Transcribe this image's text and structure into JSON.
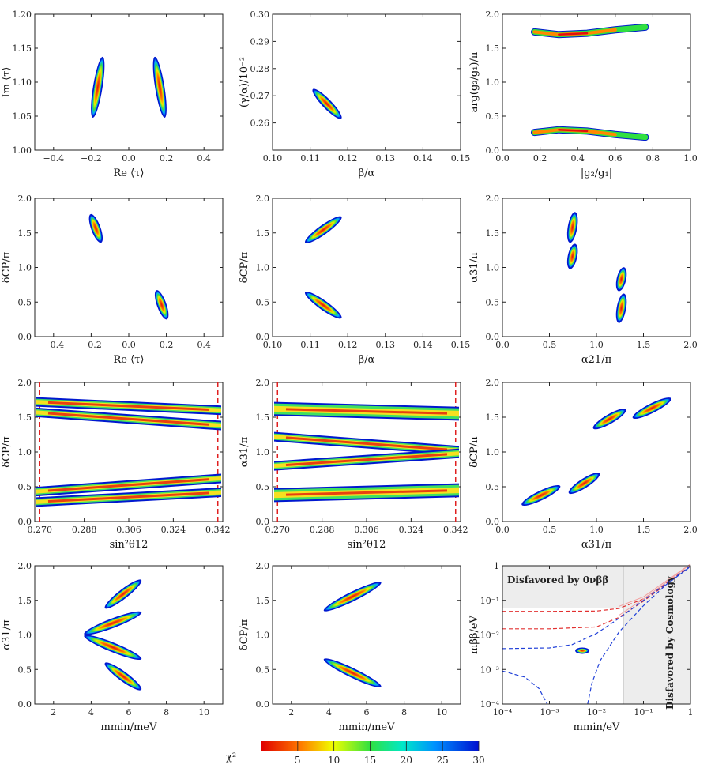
{
  "figure": {
    "colorbar_label": "χ²"
  },
  "colorbar": {
    "ticks": [
      5,
      10,
      15,
      20,
      25,
      30
    ],
    "min": 0,
    "max": 30,
    "tick_labels": [
      "5",
      "10",
      "15",
      "20",
      "25",
      "30"
    ]
  },
  "chart_data": [
    {
      "id": "p1",
      "type": "scatter",
      "xlabel": "Re ⟨τ⟩",
      "ylabel": "Im ⟨τ⟩",
      "xlim": [
        -0.5,
        0.5
      ],
      "ylim": [
        1.0,
        1.2
      ],
      "xticks": [
        -0.4,
        -0.2,
        0.0,
        0.2,
        0.4
      ],
      "xtick_labels": [
        "−0.4",
        "−0.2",
        "0.0",
        "0.2",
        "0.4"
      ],
      "yticks": [
        1.0,
        1.05,
        1.1,
        1.15,
        1.2
      ],
      "ytick_labels": [
        "1.00",
        "1.05",
        "1.10",
        "1.15",
        "1.20"
      ],
      "blobs": [
        {
          "x": [
            -0.19,
            -0.14
          ],
          "y": [
            1.05,
            1.135
          ],
          "w": 0.02
        },
        {
          "x": [
            0.19,
            0.14
          ],
          "y": [
            1.05,
            1.135
          ],
          "w": 0.02
        }
      ]
    },
    {
      "id": "p2",
      "type": "scatter",
      "xlabel": "β/α",
      "ylabel": "(γ/α)/10⁻³",
      "xlim": [
        0.1,
        0.15
      ],
      "ylim": [
        0.25,
        0.3
      ],
      "xticks": [
        0.1,
        0.11,
        0.12,
        0.13,
        0.14,
        0.15
      ],
      "xtick_labels": [
        "0.10",
        "0.11",
        "0.12",
        "0.13",
        "0.14",
        "0.15"
      ],
      "yticks": [
        0.26,
        0.27,
        0.28,
        0.29,
        0.3
      ],
      "ytick_labels": [
        "0.26",
        "0.27",
        "0.28",
        "0.29",
        "0.30"
      ],
      "blobs": [
        {
          "x": [
            0.111,
            0.118
          ],
          "y": [
            0.272,
            0.262
          ],
          "w": 0.008
        }
      ]
    },
    {
      "id": "p3",
      "type": "scatter",
      "xlabel": "|g₂/g₁|",
      "ylabel": "arg(g₂/g₁)/π",
      "xlim": [
        0,
        1
      ],
      "ylim": [
        0,
        2
      ],
      "xticks": [
        0,
        0.2,
        0.4,
        0.6,
        0.8,
        1.0
      ],
      "xtick_labels": [
        "0.0",
        "0.2",
        "0.4",
        "0.6",
        "0.8",
        "1.0"
      ],
      "yticks": [
        0,
        0.5,
        1.0,
        1.5,
        2.0
      ],
      "ytick_labels": [
        "0.0",
        "0.5",
        "1.0",
        "1.5",
        "2.0"
      ],
      "curves": [
        {
          "pts": [
            [
              0.17,
              1.74
            ],
            [
              0.3,
              1.7
            ],
            [
              0.45,
              1.72
            ],
            [
              0.6,
              1.77
            ],
            [
              0.76,
              1.81
            ]
          ],
          "w": 0.06
        },
        {
          "pts": [
            [
              0.17,
              0.26
            ],
            [
              0.3,
              0.3
            ],
            [
              0.45,
              0.28
            ],
            [
              0.6,
              0.23
            ],
            [
              0.76,
              0.19
            ]
          ],
          "w": 0.06
        }
      ]
    },
    {
      "id": "p4",
      "type": "scatter",
      "xlabel": "Re ⟨τ⟩",
      "ylabel": "δCP/π",
      "xlim": [
        -0.5,
        0.5
      ],
      "ylim": [
        0,
        2
      ],
      "xticks": [
        -0.4,
        -0.2,
        0.0,
        0.2,
        0.4
      ],
      "xtick_labels": [
        "−0.4",
        "−0.2",
        "0.0",
        "0.2",
        "0.4"
      ],
      "yticks": [
        0,
        0.5,
        1.0,
        1.5,
        2.0
      ],
      "ytick_labels": [
        "0.0",
        "0.5",
        "1.0",
        "1.5",
        "2.0"
      ],
      "blobs": [
        {
          "x": [
            -0.2,
            -0.15
          ],
          "y": [
            1.75,
            1.38
          ],
          "w": 0.025
        },
        {
          "x": [
            0.15,
            0.2
          ],
          "y": [
            0.65,
            0.27
          ],
          "w": 0.025
        }
      ]
    },
    {
      "id": "p5",
      "type": "scatter",
      "xlabel": "β/α",
      "ylabel": "δCP/π",
      "xlim": [
        0.1,
        0.15
      ],
      "ylim": [
        0,
        2
      ],
      "xticks": [
        0.1,
        0.11,
        0.12,
        0.13,
        0.14,
        0.15
      ],
      "xtick_labels": [
        "0.10",
        "0.11",
        "0.12",
        "0.13",
        "0.14",
        "0.15"
      ],
      "yticks": [
        0,
        0.5,
        1.0,
        1.5,
        2.0
      ],
      "ytick_labels": [
        "0.0",
        "0.5",
        "1.0",
        "1.5",
        "2.0"
      ],
      "blobs": [
        {
          "x": [
            0.109,
            0.118
          ],
          "y": [
            1.37,
            1.72
          ],
          "w": 0.05
        },
        {
          "x": [
            0.109,
            0.118
          ],
          "y": [
            0.63,
            0.28
          ],
          "w": 0.05
        }
      ]
    },
    {
      "id": "p6",
      "type": "scatter",
      "xlabel": "α21/π",
      "ylabel": "α31/π",
      "xlim": [
        0,
        2
      ],
      "ylim": [
        0,
        2
      ],
      "xticks": [
        0,
        0.5,
        1.0,
        1.5,
        2.0
      ],
      "xtick_labels": [
        "0.0",
        "0.5",
        "1.0",
        "1.5",
        "2.0"
      ],
      "yticks": [
        0,
        0.5,
        1.0,
        1.5,
        2.0
      ],
      "ytick_labels": [
        "0.0",
        "0.5",
        "1.0",
        "1.5",
        "2.0"
      ],
      "blobs": [
        {
          "x": [
            0.72,
            0.77
          ],
          "y": [
            1.38,
            1.78
          ],
          "w": 0.06
        },
        {
          "x": [
            0.72,
            0.77
          ],
          "y": [
            1.0,
            1.32
          ],
          "w": 0.06
        },
        {
          "x": [
            1.24,
            1.29
          ],
          "y": [
            0.68,
            0.98
          ],
          "w": 0.06
        },
        {
          "x": [
            1.24,
            1.29
          ],
          "y": [
            0.22,
            0.6
          ],
          "w": 0.06
        }
      ]
    },
    {
      "id": "p7",
      "type": "scatter",
      "xlabel": "sin²θ12",
      "ylabel": "δCP/π",
      "xlim": [
        0.268,
        0.344
      ],
      "ylim": [
        0,
        2
      ],
      "xticks": [
        0.27,
        0.288,
        0.306,
        0.324,
        0.342
      ],
      "xtick_labels": [
        "0.270",
        "0.288",
        "0.306",
        "0.324",
        "0.342"
      ],
      "yticks": [
        0,
        0.5,
        1.0,
        1.5,
        2.0
      ],
      "ytick_labels": [
        "0.0",
        "0.5",
        "1.0",
        "1.5",
        "2.0"
      ],
      "vlines": [
        0.27,
        0.342
      ],
      "bands": [
        {
          "y0": 1.72,
          "y1": 1.6,
          "w": 0.1
        },
        {
          "y0": 1.57,
          "y1": 1.38,
          "w": 0.08
        },
        {
          "y0": 0.43,
          "y1": 0.62,
          "w": 0.08
        },
        {
          "y0": 0.28,
          "y1": 0.42,
          "w": 0.1
        }
      ]
    },
    {
      "id": "p8",
      "type": "scatter",
      "xlabel": "sin²θ12",
      "ylabel": "α31/π",
      "xlim": [
        0.268,
        0.344
      ],
      "ylim": [
        0,
        2
      ],
      "xticks": [
        0.27,
        0.288,
        0.306,
        0.324,
        0.342
      ],
      "xtick_labels": [
        "0.270",
        "0.288",
        "0.306",
        "0.324",
        "0.342"
      ],
      "yticks": [
        0,
        0.5,
        1.0,
        1.5,
        2.0
      ],
      "ytick_labels": [
        "0.0",
        "0.5",
        "1.0",
        "1.5",
        "2.0"
      ],
      "vlines": [
        0.27,
        0.342
      ],
      "bands": [
        {
          "y0": 1.62,
          "y1": 1.55,
          "w": 0.2
        },
        {
          "y0": 1.22,
          "y1": 1.02,
          "w": 0.12
        },
        {
          "y0": 0.8,
          "y1": 0.98,
          "w": 0.12
        },
        {
          "y0": 0.38,
          "y1": 0.45,
          "w": 0.2
        }
      ]
    },
    {
      "id": "p9",
      "type": "scatter",
      "xlabel": "α31/π",
      "ylabel": "δCP/π",
      "xlim": [
        0,
        2
      ],
      "ylim": [
        0,
        2
      ],
      "xticks": [
        0,
        0.5,
        1.0,
        1.5,
        2.0
      ],
      "xtick_labels": [
        "0.0",
        "0.5",
        "1.0",
        "1.5",
        "2.0"
      ],
      "yticks": [
        0,
        0.5,
        1.0,
        1.5,
        2.0
      ],
      "ytick_labels": [
        "0.0",
        "0.5",
        "1.0",
        "1.5",
        "2.0"
      ],
      "blobs": [
        {
          "x": [
            0.22,
            0.6
          ],
          "y": [
            0.25,
            0.5
          ],
          "w": 0.07
        },
        {
          "x": [
            0.72,
            1.02
          ],
          "y": [
            0.42,
            0.68
          ],
          "w": 0.07
        },
        {
          "x": [
            0.98,
            1.3
          ],
          "y": [
            1.35,
            1.6
          ],
          "w": 0.07
        },
        {
          "x": [
            1.4,
            1.78
          ],
          "y": [
            1.5,
            1.76
          ],
          "w": 0.07
        }
      ]
    },
    {
      "id": "p10",
      "type": "scatter",
      "xlabel": "mmin/meV",
      "ylabel": "α31/π",
      "xlim": [
        1,
        11
      ],
      "ylim": [
        0,
        2
      ],
      "xticks": [
        2,
        4,
        6,
        8,
        10
      ],
      "xtick_labels": [
        "2",
        "4",
        "6",
        "8",
        "10"
      ],
      "yticks": [
        0,
        0.5,
        1.0,
        1.5,
        2.0
      ],
      "ytick_labels": [
        "0.0",
        "0.5",
        "1.0",
        "1.5",
        "2.0"
      ],
      "blobs": [
        {
          "x": [
            4.8,
            6.6
          ],
          "y": [
            1.4,
            1.78
          ],
          "w": 0.12
        },
        {
          "x": [
            3.7,
            6.6
          ],
          "y": [
            1.02,
            1.32
          ],
          "w": 0.12
        },
        {
          "x": [
            3.7,
            6.6
          ],
          "y": [
            0.98,
            0.66
          ],
          "w": 0.12
        },
        {
          "x": [
            4.8,
            6.6
          ],
          "y": [
            0.58,
            0.22
          ],
          "w": 0.12
        }
      ]
    },
    {
      "id": "p11",
      "type": "scatter",
      "xlabel": "mmin/meV",
      "ylabel": "δCP/π",
      "xlim": [
        1,
        11
      ],
      "ylim": [
        0,
        2
      ],
      "xticks": [
        2,
        4,
        6,
        8,
        10
      ],
      "xtick_labels": [
        "2",
        "4",
        "6",
        "8",
        "10"
      ],
      "yticks": [
        0,
        0.5,
        1.0,
        1.5,
        2.0
      ],
      "ytick_labels": [
        "0.0",
        "0.5",
        "1.0",
        "1.5",
        "2.0"
      ],
      "blobs": [
        {
          "x": [
            3.8,
            6.7
          ],
          "y": [
            1.36,
            1.75
          ],
          "w": 0.12
        },
        {
          "x": [
            3.8,
            6.7
          ],
          "y": [
            0.64,
            0.26
          ],
          "w": 0.12
        }
      ]
    },
    {
      "id": "p12",
      "type": "log-log",
      "xlabel": "mmin/eV",
      "ylabel": "mββ/eV",
      "xlim": [
        0.0001,
        1
      ],
      "ylim": [
        0.0001,
        1
      ],
      "xticks": [
        0.0001,
        0.001,
        0.01,
        0.1,
        1
      ],
      "xtick_labels": [
        "10⁻⁴",
        "10⁻³",
        "10⁻²",
        "10⁻¹",
        "1"
      ],
      "yticks": [
        0.0001,
        0.001,
        0.01,
        0.1,
        1
      ],
      "ytick_labels": [
        "10⁻⁴",
        "10⁻³",
        "10⁻²",
        "10⁻¹",
        "1"
      ],
      "annotations": [
        "Disfavored by 0νββ",
        "Disfavored by Cosmology"
      ],
      "limits": {
        "0vbb": 0.06,
        "cosmology": 0.037
      },
      "point": {
        "x": 0.005,
        "y": 0.0035
      }
    }
  ]
}
